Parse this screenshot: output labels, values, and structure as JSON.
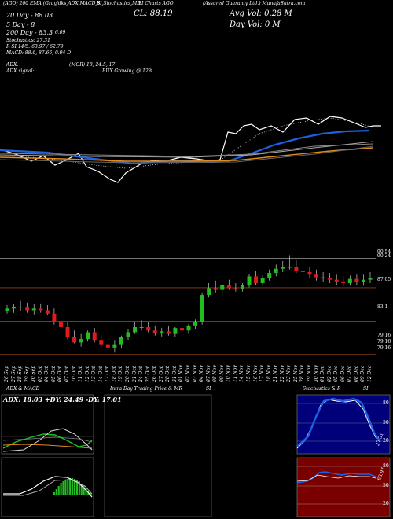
{
  "header": {
    "line1_left": "(AGO) 200 EMA (Gray/dks,ADX,MACD,B",
    "line1_mid": "SI,Stochastics,MR",
    "line1_charts": "SI Charts AGO",
    "line1_right": "(Assured Guaranty Ltd.) MunafaSutra.com",
    "close": "CL: 88.19",
    "avg_vol": "Avg Vol: 0.28  M",
    "day_vol": "Day Vol: 0   M",
    "dma20": "20 Day - 88.03",
    "dma5": "5 Day - 8",
    "dma5_val": "6.09",
    "dma200": "200 Day - 83.3",
    "stoch": "Stochastics: 27.31",
    "rsi": "R                    SI 14/5: 63.97 / 62.79",
    "macd": "MACD: 88.6, 87.66, 0.94   D",
    "adx": "ADX:",
    "adx_signal": "ADX signal:",
    "mgr": "(MGR) 18, 24.5, 17",
    "buy": "BUY Growing @ 12%"
  },
  "price_labels": [
    "90.54",
    "90.24",
    "87.05",
    "83.1",
    "79.16",
    "79.16",
    "79.16"
  ],
  "panel_titles": {
    "adx_macd": "ADX  & MACD",
    "intraday": "Intra  Day Trading Price  & MR",
    "si": "SI",
    "stoch": "Stochastics & R",
    "si2": "SI"
  },
  "adx_readout": "ADX: 18.03  +DY: 24.49  -DY: 17.01",
  "stoch_ticks": [
    "80",
    "50",
    "20"
  ],
  "rsi_ticks": [
    "80",
    "50",
    "20"
  ],
  "stoch_value": "27.31",
  "rsi_value": "63.97",
  "colors": {
    "background": "#000000",
    "up": "#1fbf1f",
    "down": "#e01b1b",
    "ema_blue": "#1f5fe0",
    "orange": "#e08a1f",
    "rsi_bg": "#7a0000",
    "stoch_bg": "#00007a"
  },
  "chart_data": {
    "type": "candlestick",
    "dates": [
      "26 Sep",
      "27 Sep",
      "28 Sep",
      "29 Sep",
      "30 Sep",
      "03 Oct",
      "04 Oct",
      "05 Oct",
      "06 Oct",
      "07 Oct",
      "10 Oct",
      "11 Oct",
      "12 Oct",
      "13 Oct",
      "14 Oct",
      "17 Oct",
      "18 Oct",
      "19 Oct",
      "20 Oct",
      "21 Oct",
      "24 Oct",
      "25 Oct",
      "26 Oct",
      "27 Oct",
      "28 Oct",
      "31 Oct",
      "01 Nov",
      "02 Nov",
      "03 Nov",
      "04 Nov",
      "07 Nov",
      "08 Nov",
      "09 Nov",
      "10 Nov",
      "11 Nov",
      "14 Nov",
      "15 Nov",
      "16 Nov",
      "17 Nov",
      "18 Nov",
      "21 Nov",
      "22 Nov",
      "23 Nov",
      "25 Nov",
      "28 Nov",
      "29 Nov",
      "30 Nov",
      "01 Dec",
      "02 Dec",
      "05 Dec",
      "06 Dec",
      "07 Dec",
      "08 Dec",
      "09 Dec",
      "12 Dec"
    ],
    "open": [
      84.3,
      84.6,
      84.8,
      84.7,
      84.4,
      84.6,
      84.4,
      84.0,
      83.0,
      82.4,
      81.2,
      80.6,
      81.0,
      81.8,
      80.8,
      80.3,
      80.0,
      80.3,
      81.2,
      81.8,
      82.4,
      82.4,
      82.0,
      81.7,
      81.9,
      81.6,
      82.3,
      82.0,
      82.6,
      83.0,
      86.2,
      87.0,
      86.8,
      87.4,
      87.0,
      86.9,
      87.4,
      88.4,
      87.6,
      88.2,
      88.8,
      89.3,
      89.5,
      89.5,
      89.0,
      88.9,
      88.6,
      88.3,
      88.2,
      88.0,
      87.8,
      87.6,
      88.1,
      87.7,
      88.0
    ],
    "high": [
      85.0,
      85.2,
      85.5,
      85.3,
      85.1,
      85.2,
      85.0,
      84.6,
      83.6,
      83.0,
      82.0,
      81.6,
      82.0,
      82.3,
      81.4,
      81.0,
      80.8,
      81.4,
      82.2,
      83.0,
      83.2,
      83.0,
      82.6,
      82.3,
      82.6,
      82.4,
      82.9,
      82.8,
      83.3,
      86.5,
      87.6,
      87.9,
      87.5,
      88.0,
      87.6,
      87.6,
      88.7,
      89.0,
      88.5,
      89.2,
      89.8,
      90.2,
      90.9,
      90.3,
      89.7,
      89.5,
      89.2,
      88.9,
      88.8,
      88.6,
      88.4,
      88.5,
      88.6,
      88.6,
      88.9
    ],
    "low": [
      84.0,
      84.1,
      84.3,
      84.1,
      83.9,
      84.1,
      83.8,
      82.7,
      82.2,
      81.0,
      80.5,
      80.1,
      80.7,
      80.6,
      80.0,
      79.7,
      79.4,
      79.9,
      80.9,
      81.6,
      82.0,
      81.8,
      81.4,
      81.3,
      81.4,
      81.3,
      81.7,
      81.6,
      82.2,
      82.7,
      85.9,
      86.5,
      86.3,
      86.8,
      86.6,
      86.6,
      87.1,
      87.4,
      87.3,
      87.9,
      88.4,
      88.9,
      89.2,
      88.8,
      88.4,
      88.2,
      87.9,
      87.7,
      87.6,
      87.4,
      87.2,
      87.3,
      87.4,
      87.3,
      87.6
    ],
    "close": [
      84.6,
      84.8,
      84.7,
      84.4,
      84.6,
      84.4,
      84.0,
      83.0,
      82.4,
      81.2,
      80.6,
      81.0,
      81.8,
      80.8,
      80.3,
      80.0,
      80.3,
      81.2,
      81.8,
      82.4,
      82.4,
      82.0,
      81.7,
      81.9,
      81.6,
      82.3,
      82.0,
      82.6,
      83.0,
      86.2,
      87.0,
      86.8,
      87.4,
      87.0,
      86.9,
      87.4,
      88.4,
      87.6,
      88.2,
      88.8,
      89.3,
      89.5,
      89.5,
      89.0,
      88.9,
      88.6,
      88.3,
      88.2,
      88.0,
      87.8,
      87.6,
      88.1,
      87.7,
      88.0,
      88.19
    ],
    "horizontal_lines": [
      90.54,
      87.05,
      83.1,
      79.16
    ],
    "ylim": [
      78.5,
      91.5
    ]
  }
}
